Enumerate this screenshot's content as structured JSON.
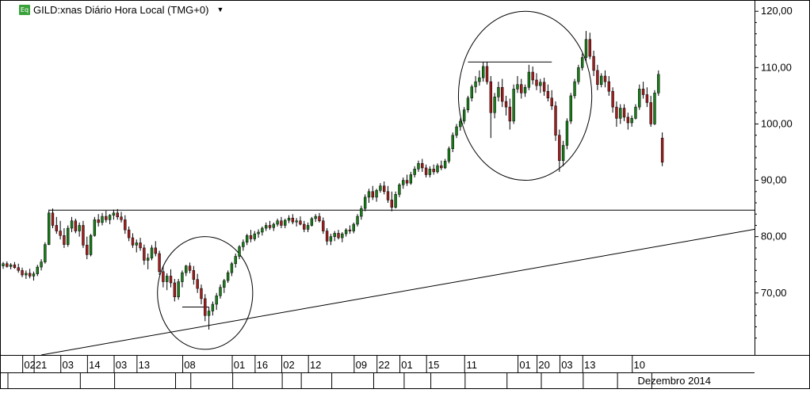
{
  "header": {
    "badge": "Eq",
    "title": "GILD:xnas Diário Hora Local (TMG+0)",
    "dropdown_icon": "caret-down-icon"
  },
  "chart_data": {
    "type": "candlestick",
    "title": "GILD:xnas Diário Hora Local (TMG+0)",
    "ylim": [
      59,
      122
    ],
    "y_ticks": [
      70,
      80,
      90,
      100,
      110,
      120
    ],
    "y_tick_labels": [
      "70,00",
      "80,00",
      "90,00",
      "100,00",
      "110,00",
      "120,00"
    ],
    "x_tick_labels": [
      "02",
      "21",
      "03",
      "14",
      "03",
      "13",
      "08",
      "01",
      "16",
      "02",
      "12",
      "09",
      "22",
      "01",
      "15",
      "11",
      "01",
      "20",
      "03",
      "13",
      "10"
    ],
    "x_tick_bars": [
      7,
      10,
      17,
      24,
      31,
      37,
      49,
      62,
      68,
      75,
      82,
      94,
      100,
      106,
      113,
      123,
      137,
      142,
      148,
      154,
      167
    ],
    "month_label": "Dezembro 2014",
    "month_label_bar": 167,
    "bar_count": 172,
    "candles": [
      [
        74.8,
        75.5,
        74.3,
        75.2
      ],
      [
        75.2,
        75.6,
        74.5,
        74.7
      ],
      [
        74.7,
        75.3,
        74.2,
        75
      ],
      [
        75,
        75.5,
        74.3,
        74.5
      ],
      [
        74.5,
        75.2,
        73.6,
        74
      ],
      [
        74,
        74.5,
        72.8,
        73.2
      ],
      [
        73.2,
        74,
        72.5,
        73.5
      ],
      [
        73.5,
        74.3,
        72.6,
        73
      ],
      [
        73,
        73.8,
        72.2,
        73.4
      ],
      [
        73.4,
        75,
        73,
        74.6
      ],
      [
        74.6,
        76,
        74,
        75.5
      ],
      [
        75.5,
        79,
        75.2,
        78.6
      ],
      [
        78.6,
        84.8,
        78.5,
        84.2
      ],
      [
        84.2,
        85,
        81.5,
        82
      ],
      [
        82,
        83.5,
        80.5,
        81
      ],
      [
        81,
        82.8,
        79.5,
        80.2
      ],
      [
        80.2,
        81.5,
        78,
        78.6
      ],
      [
        78.6,
        82,
        78.2,
        81.5
      ],
      [
        81.5,
        83.5,
        80.8,
        82.8
      ],
      [
        82.8,
        83.2,
        80.6,
        81
      ],
      [
        81,
        82.5,
        80,
        82
      ],
      [
        82,
        82.8,
        78,
        78.5
      ],
      [
        78.5,
        80,
        76,
        76.8
      ],
      [
        76.8,
        80.5,
        76.5,
        80.2
      ],
      [
        80.2,
        83.5,
        80,
        83
      ],
      [
        83,
        84,
        81.8,
        82.5
      ],
      [
        82.5,
        84.2,
        82,
        83.6
      ],
      [
        83.6,
        84.6,
        82.5,
        83
      ],
      [
        83,
        84,
        82.2,
        83.8
      ],
      [
        83.8,
        84.8,
        83,
        84.2
      ],
      [
        84.2,
        84.9,
        83,
        83.5
      ],
      [
        83.5,
        84.4,
        82.5,
        83
      ],
      [
        83,
        83.8,
        80.5,
        81.2
      ],
      [
        81.2,
        81.8,
        79.2,
        79.8
      ],
      [
        79.8,
        80.6,
        78,
        78.5
      ],
      [
        78.5,
        79.5,
        77.2,
        78.9
      ],
      [
        78.9,
        79.8,
        77.5,
        78
      ],
      [
        78,
        78.6,
        75,
        75.8
      ],
      [
        75.8,
        77,
        74.2,
        76.2
      ],
      [
        76.2,
        78.5,
        75.8,
        78
      ],
      [
        78,
        79.2,
        76.5,
        77
      ],
      [
        77,
        77.5,
        73.2,
        73.8
      ],
      [
        73.8,
        74.8,
        71,
        72
      ],
      [
        72,
        73.5,
        70.5,
        73
      ],
      [
        73,
        74.2,
        71,
        71.8
      ],
      [
        71.8,
        72.5,
        68.5,
        69.3
      ],
      [
        69.3,
        72.5,
        68.8,
        72
      ],
      [
        72,
        74,
        71,
        73.6
      ],
      [
        73.6,
        75,
        73,
        74.8
      ],
      [
        74.8,
        75.4,
        73.5,
        74
      ],
      [
        74,
        74.8,
        71.5,
        72.4
      ],
      [
        72.4,
        73.4,
        70,
        70.8
      ],
      [
        70.8,
        71.5,
        68,
        69
      ],
      [
        69,
        69.8,
        65,
        66
      ],
      [
        66,
        67.5,
        63.5,
        66.8
      ],
      [
        66.8,
        68.5,
        66,
        68
      ],
      [
        68,
        70,
        67,
        69.5
      ],
      [
        69.5,
        71.5,
        69,
        71
      ],
      [
        71,
        72.5,
        70,
        72.2
      ],
      [
        72.2,
        74,
        71.8,
        73.6
      ],
      [
        73.6,
        75.5,
        73,
        75.2
      ],
      [
        75.2,
        77,
        74.5,
        76.5
      ],
      [
        76.5,
        78.5,
        76,
        78.2
      ],
      [
        78.2,
        79.5,
        77.5,
        79
      ],
      [
        79,
        80.5,
        78.5,
        80.2
      ],
      [
        80.2,
        81.2,
        79,
        79.6
      ],
      [
        79.6,
        81,
        79.2,
        80.5
      ],
      [
        80.5,
        81.3,
        79.8,
        80.8
      ],
      [
        80.8,
        81.8,
        80.2,
        81.5
      ],
      [
        81.5,
        82.5,
        81,
        82
      ],
      [
        82,
        82.8,
        81.2,
        81.6
      ],
      [
        81.6,
        82.5,
        81,
        82.2
      ],
      [
        82.2,
        83.2,
        81.8,
        82.8
      ],
      [
        82.8,
        83.5,
        81.5,
        82
      ],
      [
        82,
        83.2,
        81.5,
        82.9
      ],
      [
        82.9,
        83.8,
        82.4,
        83.3
      ],
      [
        83.3,
        84,
        82.2,
        82.6
      ],
      [
        82.6,
        83.3,
        81.8,
        82.8
      ],
      [
        82.8,
        83.6,
        82,
        82.2
      ],
      [
        82.2,
        82.8,
        80.8,
        81.3
      ],
      [
        81.3,
        82.5,
        80.8,
        82
      ],
      [
        82,
        83.5,
        81.8,
        83.2
      ],
      [
        83.2,
        84,
        82.6,
        83.6
      ],
      [
        83.6,
        84.2,
        82.5,
        82.8
      ],
      [
        82.8,
        83.4,
        80.5,
        81
      ],
      [
        81,
        81.5,
        78.5,
        79.2
      ],
      [
        79.2,
        80.5,
        78.5,
        80
      ],
      [
        80,
        81,
        79.2,
        80.6
      ],
      [
        80.6,
        81.2,
        79.5,
        79.8
      ],
      [
        79.8,
        80.8,
        79,
        80.5
      ],
      [
        80.5,
        81.5,
        80,
        81.2
      ],
      [
        81.2,
        82,
        80.5,
        81
      ],
      [
        81,
        82.5,
        80.6,
        82.2
      ],
      [
        82.2,
        84,
        81.8,
        83.6
      ],
      [
        83.6,
        85.5,
        83,
        85
      ],
      [
        85,
        87.5,
        84.5,
        87
      ],
      [
        87,
        88.5,
        86,
        88
      ],
      [
        88,
        89,
        86.5,
        87
      ],
      [
        87,
        88.5,
        86.2,
        88.2
      ],
      [
        88.2,
        89.5,
        87.8,
        89
      ],
      [
        89,
        89.8,
        87.5,
        88
      ],
      [
        88,
        89,
        86,
        86.5
      ],
      [
        86.5,
        88,
        84.5,
        85.2
      ],
      [
        85.2,
        88,
        85,
        87.5
      ],
      [
        87.5,
        89.5,
        87,
        89.2
      ],
      [
        89.2,
        90.5,
        88.5,
        90
      ],
      [
        90,
        91,
        89,
        89.5
      ],
      [
        89.5,
        91.5,
        89.2,
        91
      ],
      [
        91,
        92.5,
        90.5,
        92
      ],
      [
        92,
        93.5,
        91.5,
        93
      ],
      [
        93,
        93.8,
        91.5,
        92.2
      ],
      [
        92.2,
        92.8,
        90.5,
        91
      ],
      [
        91,
        92.5,
        90.5,
        92
      ],
      [
        92,
        92.8,
        91,
        91.5
      ],
      [
        91.5,
        93,
        91.2,
        92.6
      ],
      [
        92.6,
        93.5,
        91.8,
        92.2
      ],
      [
        92.2,
        93.8,
        92,
        93.4
      ],
      [
        93.4,
        96,
        93,
        95.6
      ],
      [
        95.6,
        98.5,
        95,
        98
      ],
      [
        98,
        100,
        97.5,
        99.5
      ],
      [
        99.5,
        101,
        98.8,
        100.5
      ],
      [
        100.5,
        103,
        100,
        102.5
      ],
      [
        102.5,
        105,
        102,
        104.6
      ],
      [
        104.6,
        107,
        104,
        106.6
      ],
      [
        106.6,
        108.5,
        105.5,
        107.5
      ],
      [
        107.5,
        109.5,
        106.8,
        108.2
      ],
      [
        108.2,
        111,
        107.5,
        110.2
      ],
      [
        110.2,
        111,
        107,
        107.5
      ],
      [
        107.5,
        108.5,
        97.5,
        102
      ],
      [
        102,
        105.5,
        101,
        104.8
      ],
      [
        104.8,
        107.5,
        104,
        106.5
      ],
      [
        106.5,
        108,
        103,
        104
      ],
      [
        104,
        105,
        101.5,
        103
      ],
      [
        103,
        104.5,
        99,
        100.5
      ],
      [
        100.5,
        107,
        100,
        106.2
      ],
      [
        106.2,
        108.5,
        105.5,
        107
      ],
      [
        107,
        108,
        104.5,
        105.5
      ],
      [
        105.5,
        107,
        104.8,
        106.5
      ],
      [
        106.5,
        110.5,
        106,
        109.2
      ],
      [
        109.2,
        110.2,
        107,
        107.8
      ],
      [
        107.8,
        109,
        106,
        106.8
      ],
      [
        106.8,
        108,
        105.5,
        107.4
      ],
      [
        107.4,
        108.2,
        105,
        105.8
      ],
      [
        105.8,
        107,
        104,
        104.6
      ],
      [
        104.6,
        106,
        102.5,
        103.2
      ],
      [
        103.2,
        104,
        97,
        98
      ],
      [
        98,
        99,
        91.5,
        93.5
      ],
      [
        93.5,
        97,
        92.5,
        96.2
      ],
      [
        96.2,
        101,
        95.5,
        100.5
      ],
      [
        100.5,
        105.5,
        100,
        105
      ],
      [
        105,
        108,
        104.5,
        107.5
      ],
      [
        107.5,
        110.5,
        107,
        110
      ],
      [
        110,
        112.5,
        109.5,
        111.8
      ],
      [
        111.8,
        116.5,
        111,
        115
      ],
      [
        115,
        116.2,
        111.5,
        112
      ],
      [
        112,
        113,
        108.5,
        109.5
      ],
      [
        109.5,
        110.5,
        106,
        107
      ],
      [
        107,
        109,
        106.5,
        108.5
      ],
      [
        108.5,
        109.5,
        106.5,
        107.5
      ],
      [
        107.5,
        108.5,
        105,
        105.8
      ],
      [
        105.8,
        106.5,
        102,
        103
      ],
      [
        103,
        104,
        99.5,
        101
      ],
      [
        101,
        103.5,
        100,
        102.8
      ],
      [
        102.8,
        103.5,
        100.5,
        101.2
      ],
      [
        101.2,
        102,
        99,
        100.2
      ],
      [
        100.2,
        101.5,
        99.5,
        101
      ],
      [
        101,
        103.5,
        100.8,
        103
      ],
      [
        103,
        107,
        102.5,
        106.2
      ],
      [
        106.2,
        107.5,
        104.5,
        105.2
      ],
      [
        105.2,
        106.5,
        103,
        103.8
      ],
      [
        103.8,
        105,
        99.5,
        100
      ],
      [
        100,
        106,
        99.8,
        105.5
      ],
      [
        105.5,
        109.5,
        105,
        108.8
      ],
      [
        97.5,
        98.5,
        92.5,
        93.2
      ]
    ],
    "lines": [
      {
        "from": [
          12,
          84.7
        ],
        "to": [
          172,
          84.7
        ]
      },
      {
        "from": [
          10,
          59
        ],
        "to": [
          172,
          81.3
        ]
      },
      {
        "from": [
          47,
          67.5
        ],
        "to": [
          54,
          67.5
        ]
      },
      {
        "from": [
          122,
          111
        ],
        "to": [
          144,
          111
        ]
      }
    ],
    "ellipses": [
      {
        "center": [
          53,
          70
        ],
        "rx_bars": 12.5,
        "ry": 10
      },
      {
        "center": [
          137,
          105
        ],
        "rx_bars": 17.5,
        "ry": 15
      }
    ],
    "colors": {
      "up": "#1a7d1a",
      "down": "#a01e1e",
      "wick": "#000000",
      "grid": "#000000"
    }
  }
}
